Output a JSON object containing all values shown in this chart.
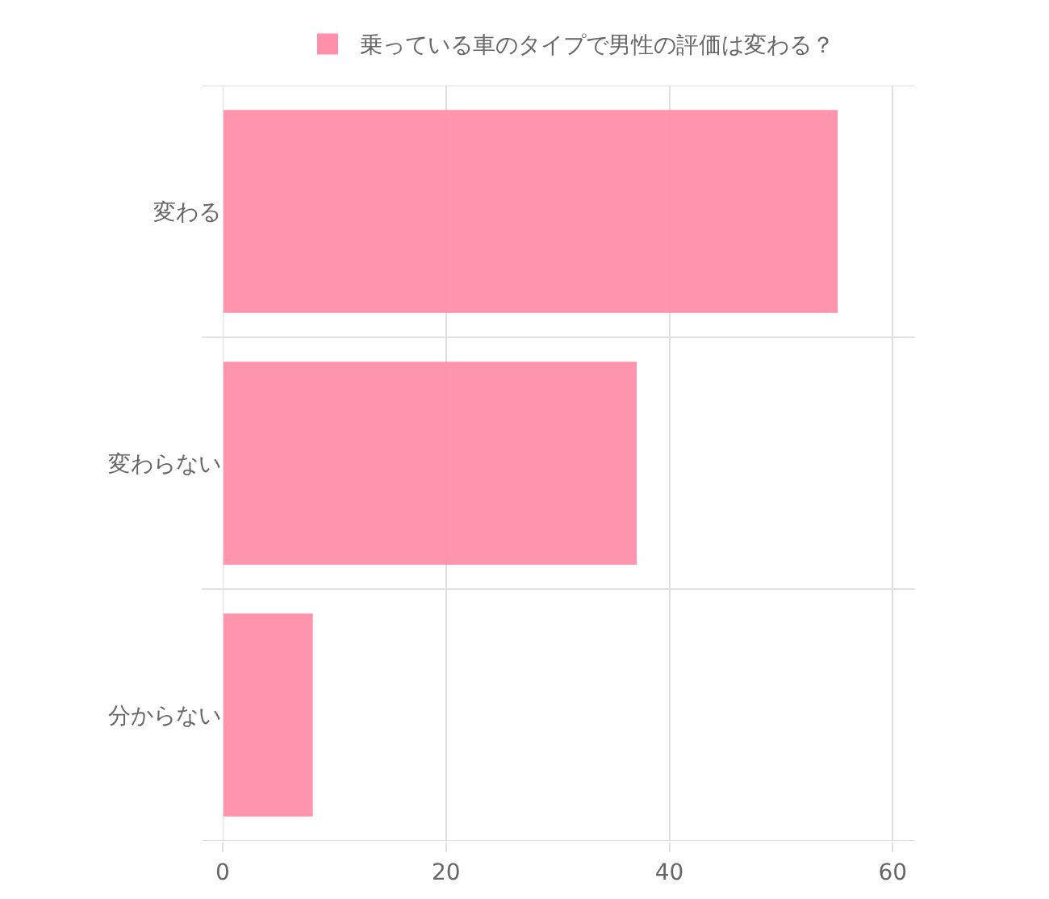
{
  "chart_data": {
    "type": "bar",
    "orientation": "horizontal",
    "categories": [
      "変わる",
      "変わらない",
      "分からない"
    ],
    "series": [
      {
        "name": "乗っている車のタイプで男性の評価は変わる？",
        "color": "#ff8fab",
        "values": [
          55,
          37,
          8
        ]
      }
    ],
    "xlim": [
      0,
      62
    ],
    "xticks": [
      0,
      20,
      40,
      60
    ],
    "grid": true,
    "legend": "top"
  }
}
